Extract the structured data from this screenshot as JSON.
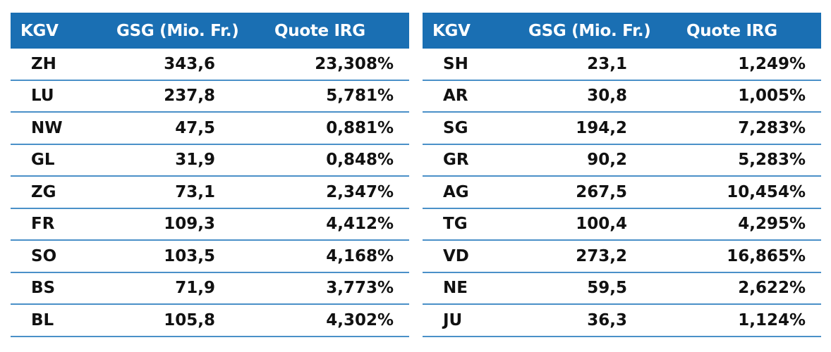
{
  "headers": {
    "kgv": "KGV",
    "gsg": "GSG (Mio. Fr.)",
    "quote": "Quote IRG"
  },
  "left_rows": [
    {
      "kgv": "ZH",
      "gsg": "343,6",
      "quote": "23,308%"
    },
    {
      "kgv": "LU",
      "gsg": "237,8",
      "quote": "5,781%"
    },
    {
      "kgv": "NW",
      "gsg": "47,5",
      "quote": "0,881%"
    },
    {
      "kgv": "GL",
      "gsg": "31,9",
      "quote": "0,848%"
    },
    {
      "kgv": "ZG",
      "gsg": "73,1",
      "quote": "2,347%"
    },
    {
      "kgv": "FR",
      "gsg": "109,3",
      "quote": "4,412%"
    },
    {
      "kgv": "SO",
      "gsg": "103,5",
      "quote": "4,168%"
    },
    {
      "kgv": "BS",
      "gsg": "71,9",
      "quote": "3,773%"
    },
    {
      "kgv": "BL",
      "gsg": "105,8",
      "quote": "4,302%"
    }
  ],
  "right_rows": [
    {
      "kgv": "SH",
      "gsg": "23,1",
      "quote": "1,249%"
    },
    {
      "kgv": "AR",
      "gsg": "30,8",
      "quote": "1,005%"
    },
    {
      "kgv": "SG",
      "gsg": "194,2",
      "quote": "7,283%"
    },
    {
      "kgv": "GR",
      "gsg": "90,2",
      "quote": "5,283%"
    },
    {
      "kgv": "AG",
      "gsg": "267,5",
      "quote": "10,454%"
    },
    {
      "kgv": "TG",
      "gsg": "100,4",
      "quote": "4,295%"
    },
    {
      "kgv": "VD",
      "gsg": "273,2",
      "quote": "16,865%"
    },
    {
      "kgv": "NE",
      "gsg": "59,5",
      "quote": "2,622%"
    },
    {
      "kgv": "JU",
      "gsg": "36,3",
      "quote": "1,124%"
    }
  ],
  "colors": {
    "header_bg": "#1a6fb3",
    "rule": "#4a90c8"
  }
}
